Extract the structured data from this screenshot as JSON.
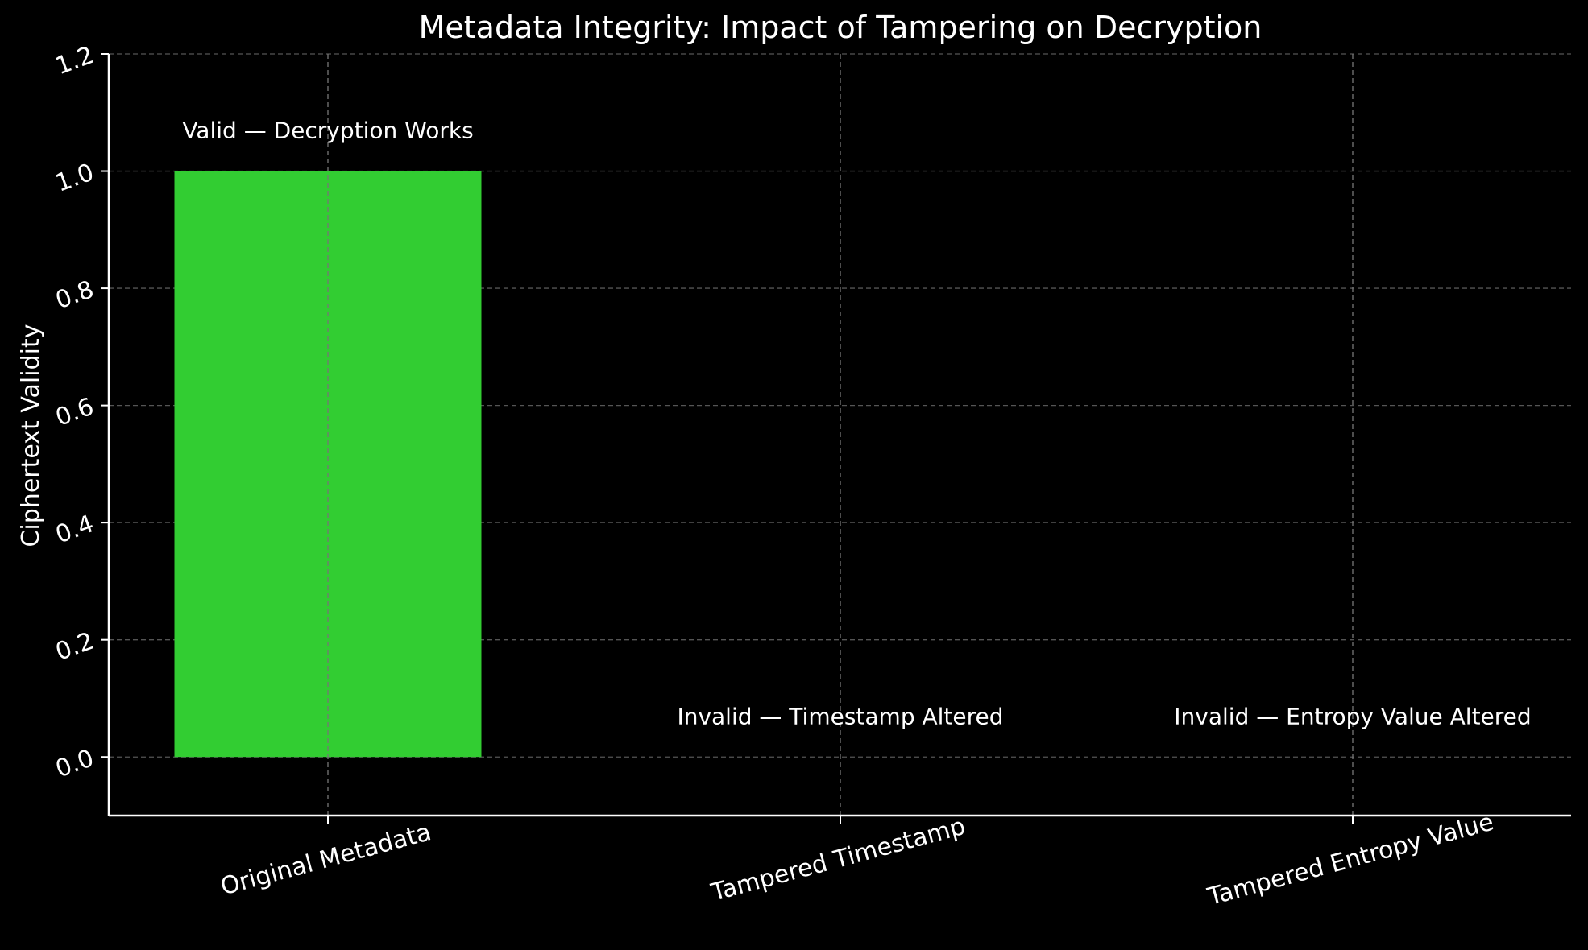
{
  "chart_data": {
    "type": "bar",
    "title": "Metadata Integrity: Impact of Tampering on Decryption",
    "xlabel": "",
    "ylabel": "Ciphertext Validity",
    "categories": [
      "Original Metadata",
      "Tampered Timestamp",
      "Tampered Entropy Value"
    ],
    "values": [
      1,
      0,
      0
    ],
    "annotations": [
      "Valid — Decryption Works",
      "Invalid — Timestamp Altered",
      "Invalid — Entropy Value Altered"
    ],
    "bar_color": "#32cd32",
    "ylim": [
      -0.1,
      1.2
    ],
    "yticks": [
      0.0,
      0.2,
      0.4,
      0.6,
      0.8,
      1.0,
      1.2
    ],
    "ytick_labels": [
      "0.0",
      "0.2",
      "0.4",
      "0.6",
      "0.8",
      "1.0",
      "1.2"
    ],
    "grid": true,
    "background": "#000000",
    "foreground": "#ffffff"
  }
}
